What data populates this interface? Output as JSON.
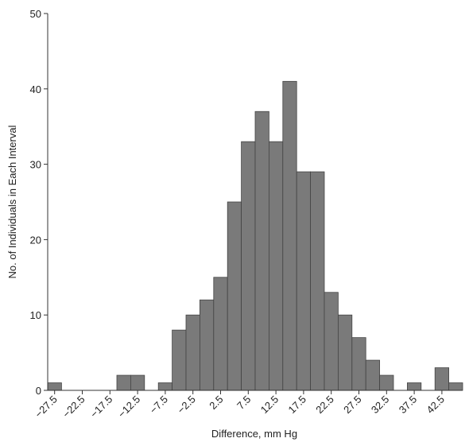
{
  "chart_data": {
    "type": "histogram",
    "x_label": "Difference, mm Hg",
    "y_label": "No. of Individuals in Each Interval",
    "bins": [
      -28.75,
      -26.25,
      -23.75,
      -21.25,
      -18.75,
      -16.25,
      -13.75,
      -11.25,
      -8.75,
      -6.25,
      -3.75,
      -1.25,
      1.25,
      3.75,
      6.25,
      8.75,
      11.25,
      13.75,
      16.25,
      18.75,
      21.25,
      23.75,
      26.25,
      28.75,
      31.25,
      33.75,
      36.25,
      38.75,
      41.25,
      43.75,
      46.25
    ],
    "counts": [
      1,
      0,
      0,
      0,
      0,
      2,
      2,
      0,
      1,
      8,
      10,
      12,
      15,
      25,
      33,
      37,
      33,
      41,
      29,
      29,
      13,
      10,
      7,
      4,
      2,
      0,
      1,
      0,
      3,
      1
    ],
    "color": "#7a7a7a",
    "xlim": [
      -28.75,
      46.25
    ],
    "xticks": [
      {
        "value": -27.5,
        "label": "−27.5"
      },
      {
        "value": -22.5,
        "label": "−22.5"
      },
      {
        "value": -17.5,
        "label": "−17.5"
      },
      {
        "value": -12.5,
        "label": "−12.5"
      },
      {
        "value": -7.5,
        "label": "−7.5"
      },
      {
        "value": -2.5,
        "label": "−2.5"
      },
      2.5,
      7.5,
      12.5,
      17.5,
      22.5,
      27.5,
      32.5,
      37.5,
      42.5
    ],
    "ylim": [
      0,
      50
    ],
    "yticks": [
      0,
      10,
      20,
      30,
      40,
      50
    ]
  }
}
